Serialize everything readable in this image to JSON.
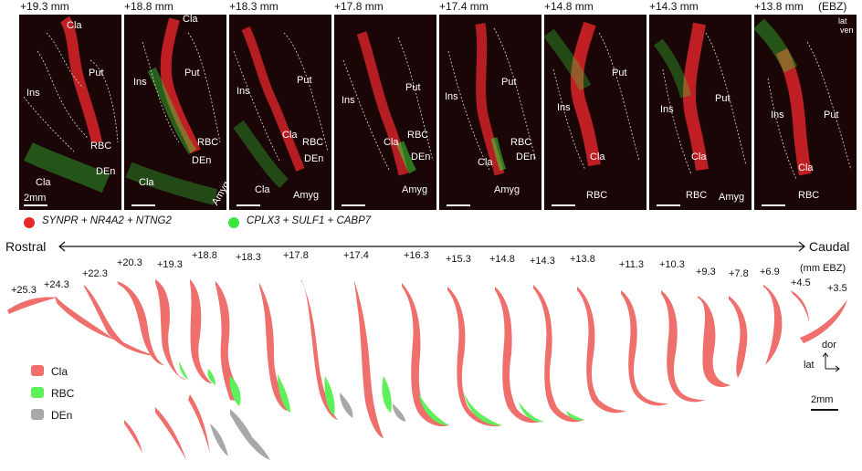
{
  "panels": [
    {
      "coord": "+19.3 mm",
      "labels": [
        "Cla",
        "Ins",
        "Put",
        "RBC",
        "DEn",
        "Cla"
      ],
      "scale": "2mm"
    },
    {
      "coord": "+18.8 mm",
      "labels": [
        "Cla",
        "Ins",
        "Put",
        "RBC",
        "DEn",
        "Cla",
        "Amyg"
      ]
    },
    {
      "coord": "+18.3 mm",
      "labels": [
        "Ins",
        "Put",
        "Cla",
        "RBC",
        "DEn",
        "Cla",
        "Amyg"
      ]
    },
    {
      "coord": "+17.8 mm",
      "labels": [
        "Ins",
        "Put",
        "RBC",
        "Cla",
        "DEn",
        "Amyg"
      ]
    },
    {
      "coord": "+17.4 mm",
      "labels": [
        "Ins",
        "Put",
        "RBC",
        "Cla",
        "DEn",
        "Amyg"
      ]
    },
    {
      "coord": "+14.8 mm",
      "labels": [
        "Put",
        "Ins",
        "Cla",
        "RBC"
      ]
    },
    {
      "coord": "+14.3 mm",
      "labels": [
        "Put",
        "Ins",
        "Cla",
        "RBC",
        "Amyg"
      ]
    },
    {
      "coord": "+13.8 mm",
      "labels": [
        "Ins",
        "Put",
        "Cla",
        "RBC"
      ],
      "ebz": "(EBZ)",
      "orient_lat": "lat",
      "orient_ven": "ven"
    }
  ],
  "legend_top": [
    {
      "text": "SYNPR + NR4A2 + NTNG2",
      "color": "#e8262b"
    },
    {
      "text": "CPLX3 + SULF1 + CABP7",
      "color": "#39e83a"
    }
  ],
  "axis": {
    "left": "Rostral",
    "right": "Caudal"
  },
  "section_coords": [
    "+25.3",
    "+24.3",
    "+22.3",
    "+20.3",
    "+19.3",
    "+18.8",
    "+18.3",
    "+17.8",
    "+17.4",
    "+16.3",
    "+15.3",
    "+14.8",
    "+14.3",
    "+13.8",
    "+11.3",
    "+10.3",
    "+9.3",
    "+7.8",
    "+6.9",
    "+4.5",
    "+3.5"
  ],
  "units": "(mm EBZ)",
  "legend_bottom": [
    {
      "text": "Cla",
      "color": "#ee6f6c"
    },
    {
      "text": "RBC",
      "color": "#5ef05a"
    },
    {
      "text": "DEn",
      "color": "#a8a8a8"
    }
  ],
  "orient_bottom": {
    "dor": "dor",
    "lat": "lat"
  },
  "scale_bottom": "2mm"
}
